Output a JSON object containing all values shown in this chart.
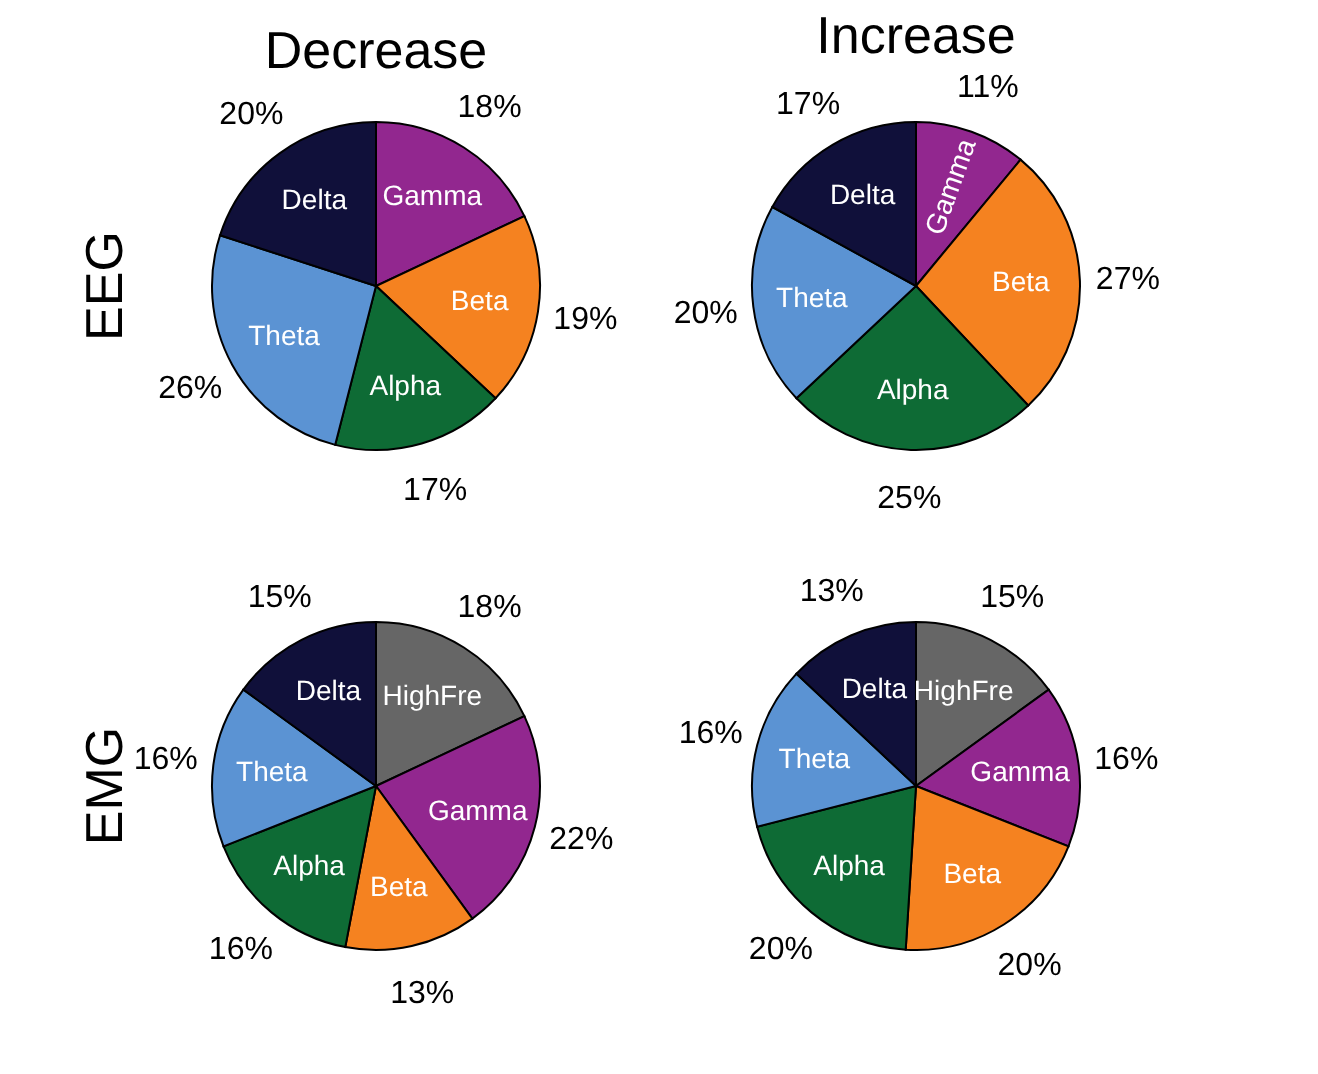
{
  "chart_data": [
    {
      "type": "pie",
      "title": "Decrease",
      "ylabel": "EEG",
      "categories": [
        "Gamma",
        "Beta",
        "Alpha",
        "Theta",
        "Delta"
      ],
      "values": [
        18,
        19,
        17,
        26,
        20
      ],
      "value_labels": [
        "18%",
        "19%",
        "17%",
        "26%",
        "20%"
      ],
      "colors": [
        "#92278f",
        "#f58220",
        "#0e6b35",
        "#5b93d3",
        "#10103a"
      ],
      "legend": false
    },
    {
      "type": "pie",
      "title": "Increase",
      "categories": [
        "Gamma",
        "Beta",
        "Alpha",
        "Theta",
        "Delta"
      ],
      "values": [
        11,
        27,
        25,
        20,
        17
      ],
      "value_labels": [
        "11%",
        "27%",
        "25%",
        "20%",
        "17%"
      ],
      "colors": [
        "#92278f",
        "#f58220",
        "#0e6b35",
        "#5b93d3",
        "#10103a"
      ],
      "legend": false
    },
    {
      "type": "pie",
      "ylabel": "EMG",
      "categories": [
        "HighFre",
        "Gamma",
        "Beta",
        "Alpha",
        "Theta",
        "Delta"
      ],
      "values": [
        18,
        22,
        13,
        16,
        16,
        15
      ],
      "value_labels": [
        "18%",
        "22%",
        "13%",
        "16%",
        "16%",
        "15%"
      ],
      "colors": [
        "#666666",
        "#92278f",
        "#f58220",
        "#0e6b35",
        "#5b93d3",
        "#10103a"
      ],
      "legend": false
    },
    {
      "type": "pie",
      "categories": [
        "HighFre",
        "Gamma",
        "Beta",
        "Alpha",
        "Theta",
        "Delta"
      ],
      "values": [
        15,
        16,
        20,
        20,
        16,
        13
      ],
      "value_labels": [
        "15%",
        "16%",
        "20%",
        "20%",
        "16%",
        "13%"
      ],
      "colors": [
        "#666666",
        "#92278f",
        "#f58220",
        "#0e6b35",
        "#5b93d3",
        "#10103a"
      ],
      "legend": false
    }
  ]
}
